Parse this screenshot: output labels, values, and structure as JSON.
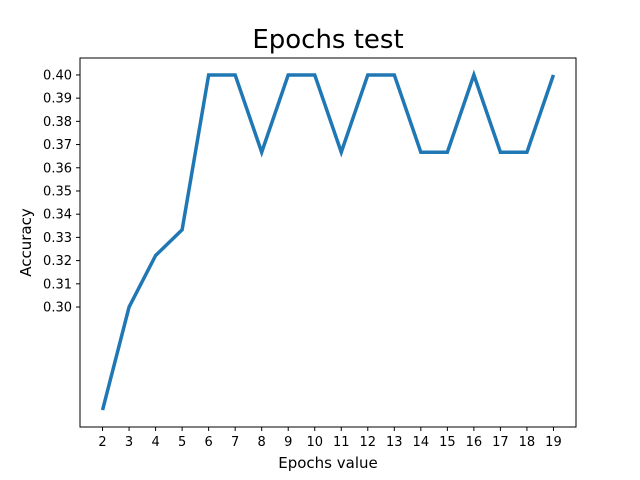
{
  "chart_data": {
    "type": "line",
    "title": "Epochs test",
    "xlabel": "Epochs value",
    "ylabel": "Accuracy",
    "x": [
      2,
      3,
      4,
      5,
      6,
      7,
      8,
      9,
      10,
      11,
      12,
      13,
      14,
      15,
      16,
      17,
      18,
      19
    ],
    "series": [
      {
        "name": "accuracy",
        "color": "#1f77b4",
        "values": [
          0.2556,
          0.3,
          0.3222,
          0.3333,
          0.4,
          0.4,
          0.3667,
          0.4,
          0.4,
          0.3667,
          0.4,
          0.4,
          0.3667,
          0.3667,
          0.4,
          0.3667,
          0.3667,
          0.4
        ]
      }
    ],
    "xticks": [
      "2",
      "3",
      "4",
      "5",
      "6",
      "7",
      "8",
      "9",
      "10",
      "11",
      "12",
      "13",
      "14",
      "15",
      "16",
      "17",
      "18",
      "19"
    ],
    "yticks": [
      0.3,
      0.31,
      0.32,
      0.33,
      0.34,
      0.35,
      0.36,
      0.37,
      0.38,
      0.39,
      0.4
    ],
    "ytick_labels": [
      "0.30",
      "0.31",
      "0.32",
      "0.33",
      "0.34",
      "0.35",
      "0.36",
      "0.37",
      "0.38",
      "0.39",
      "0.40"
    ],
    "xlim": [
      1.15,
      19.85
    ],
    "ylim": [
      0.2483,
      0.4073
    ],
    "grid": false,
    "legend": "none"
  }
}
